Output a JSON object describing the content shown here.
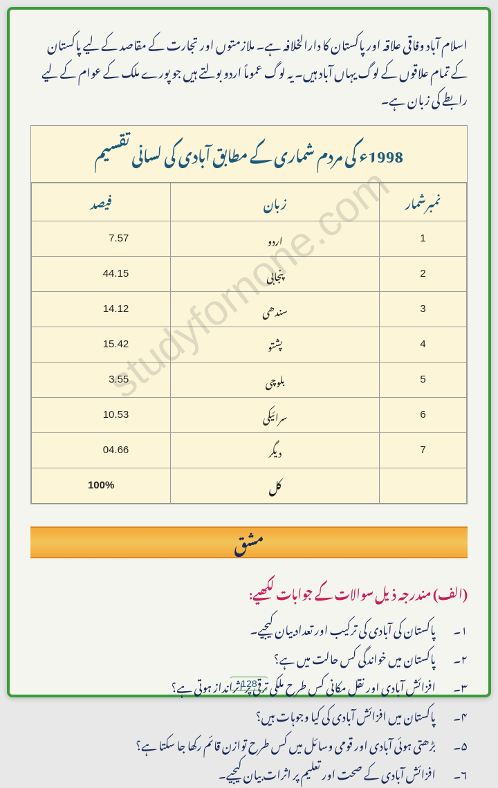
{
  "intro": "اسلام آباد وفاقی علاقہ اور پاکستان کا دارالخلافہ ہے۔ ملازمتوں اور تجارت کے مقاصد کے لیے پاکستان کے تمام علاقوں کے لوگ یہاں آباد ہیں۔ یہ لوگ عموماً اردو بولتے ہیں جو پورے ملک کے عوام کے لیے رابطے کی زبان ہے۔",
  "table": {
    "title": "1998ء کی مردم شماری کے مطابق آبادی کی لسانی تقسیم",
    "headers": {
      "percent": "فیصد",
      "language": "زبان",
      "number": "نمبرشمار"
    },
    "rows": [
      {
        "num": "1",
        "lang": "اردو",
        "perc": "7.57"
      },
      {
        "num": "2",
        "lang": "پنجابی",
        "perc": "44.15"
      },
      {
        "num": "3",
        "lang": "سندھی",
        "perc": "14.12"
      },
      {
        "num": "4",
        "lang": "پشتو",
        "perc": "15.42"
      },
      {
        "num": "5",
        "lang": "بلوچی",
        "perc": "3.55"
      },
      {
        "num": "6",
        "lang": "سرائیکی",
        "perc": "10.53"
      },
      {
        "num": "7",
        "lang": "دیگر",
        "perc": "04.66"
      }
    ],
    "total": {
      "lang": "کل",
      "perc": "100%"
    }
  },
  "exercise_label": "مشق",
  "section_alif": "(الف) مندرجہ ذیل سوالات کے جوابات لکھیے:",
  "questions": [
    {
      "n": "۱۔",
      "t": "پاکستان کی آبادی کی ترکیب اور تعداد بیان کیجیے۔"
    },
    {
      "n": "۲۔",
      "t": "پاکستان میں خواندگی کس حالت میں ہے؟"
    },
    {
      "n": "۳۔",
      "t": "افزائش آبادی اور نقل مکانی کس طرح ملکی ترقی پر اثرانداز ہوتی ہے؟"
    },
    {
      "n": "۴۔",
      "t": "پاکستان میں افزائش آبادی کی کیا وجوہات ہیں؟"
    },
    {
      "n": "۵۔",
      "t": "بڑھتی ہوئی آبادی اور قومی وسائل میں کس طرح توازن قائم رکھا جا سکتا ہے؟"
    },
    {
      "n": "۶۔",
      "t": "افزائش آبادی کے صحت اور تعلیم پر اثرات بیان کیجیے۔"
    }
  ],
  "watermark": "studyfornone.com",
  "page_number": "128",
  "colors": {
    "border": "#3a9b3a",
    "text_body": "#1a2a5a",
    "table_bg": "#fdf5d8",
    "heading": "#c81e5a",
    "table_heading": "#1a5a7a",
    "band_a": "#f5a838",
    "band_b": "#f2c45a"
  }
}
